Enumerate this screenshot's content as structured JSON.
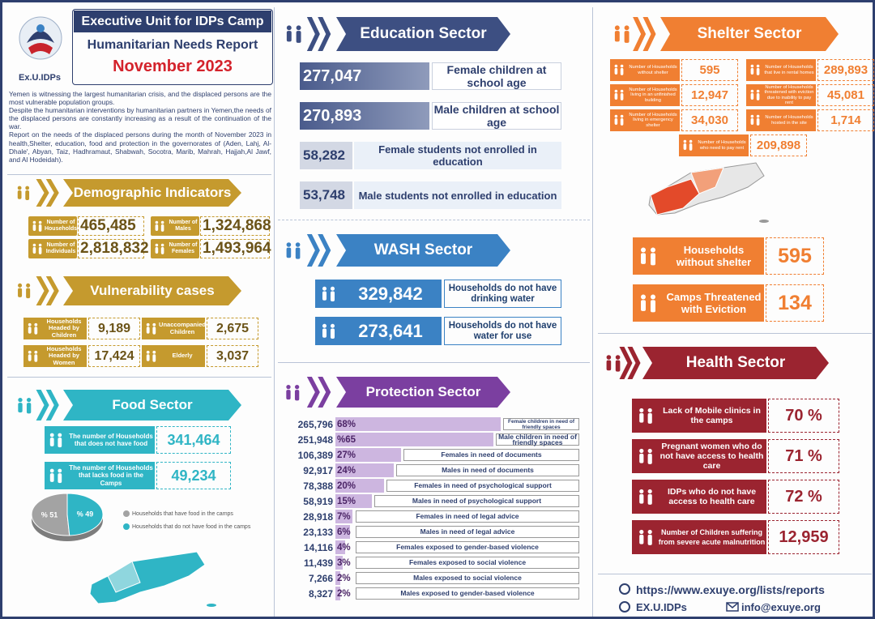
{
  "header": {
    "title": "Executive Unit for IDPs Camp",
    "subtitle": "Humanitarian Needs Report",
    "date": "November 2023",
    "logo": "Ex.U.IDPs"
  },
  "intro": [
    "Yemen is witnessing the largest humanitarian crisis, and the displaced persons are the most vulnerable population groups.",
    "Despite the humanitarian interventions by humanitarian partners in Yemen,the needs of the displaced persons are constantly increasing as a result of the continuation of the war.",
    "Report on the needs of the displaced persons during the month of November 2023 in health,Shelter, education, food and protection in the governorates of (Aden, Lahj, Al-Dhale', Abyan, Taiz, Hadhramaut, Shabwah, Socotra, Marib, Mahrah, Hajjah,Al Jawf, and Al Hodeidah)."
  ],
  "demographic": {
    "title": "Demographic Indicators",
    "items": [
      {
        "label": "Number of Households",
        "value": "465,485"
      },
      {
        "label": "Number of Males",
        "value": "1,324,868"
      },
      {
        "label": "Number of Individuals",
        "value": "2,818,832"
      },
      {
        "label": "Number of Females",
        "value": "1,493,964"
      }
    ]
  },
  "vulnerability": {
    "title": "Vulnerability cases",
    "items": [
      {
        "label": "Households Headed by Children",
        "value": "9,189"
      },
      {
        "label": "Unaccompanied Children",
        "value": "2,675"
      },
      {
        "label": "Households Headed by Women",
        "value": "17,424"
      },
      {
        "label": "Elderly",
        "value": "3,037"
      }
    ]
  },
  "food": {
    "title": "Food Sector",
    "items": [
      {
        "label": "The number of Households that does not have food",
        "value": "341,464"
      },
      {
        "label": "The number of Households that lacks food in the Camps",
        "value": "49,234"
      }
    ],
    "pie": [
      {
        "label": "Households that have food in the camps",
        "value": 51,
        "value_label": "% 51",
        "color": "#a3a3a3"
      },
      {
        "label": "Households that do not have food in the camps",
        "value": 49,
        "value_label": "% 49",
        "color": "#2fb5c5"
      }
    ]
  },
  "education": {
    "title": "Education Sector",
    "items": [
      {
        "value": "277,047",
        "label": "Female children at school age"
      },
      {
        "value": "270,893",
        "label": "Male children at school age"
      },
      {
        "value": "58,282",
        "label": "Female students not enrolled in education"
      },
      {
        "value": "53,748",
        "label": "Male students not enrolled in education"
      }
    ]
  },
  "wash": {
    "title": "WASH Sector",
    "items": [
      {
        "value": "329,842",
        "label": "Households do not have drinking water"
      },
      {
        "value": "273,641",
        "label": "Households do not have water for use"
      }
    ]
  },
  "protection": {
    "title": "Protection Sector",
    "items": [
      {
        "value": "265,796",
        "percent": 68,
        "percent_label": "68%",
        "label": "Female children in need of friendly spaces"
      },
      {
        "value": "251,948",
        "percent": 65,
        "percent_label": "%65",
        "label": "Male children in need of friendly spaces"
      },
      {
        "value": "106,389",
        "percent": 27,
        "percent_label": "27%",
        "label": "Females in need of documents"
      },
      {
        "value": "92,917",
        "percent": 24,
        "percent_label": "24%",
        "label": "Males in need of documents"
      },
      {
        "value": "78,388",
        "percent": 20,
        "percent_label": "20%",
        "label": "Females in need of psychological support"
      },
      {
        "value": "58,919",
        "percent": 15,
        "percent_label": "15%",
        "label": "Males in need of psychological support"
      },
      {
        "value": "28,918",
        "percent": 7,
        "percent_label": "7%",
        "label": "Females in need of legal advice"
      },
      {
        "value": "23,133",
        "percent": 6,
        "percent_label": "6%",
        "label": "Males in need of legal advice"
      },
      {
        "value": "14,116",
        "percent": 4,
        "percent_label": "4%",
        "label": "Females exposed to gender-based violence"
      },
      {
        "value": "11,439",
        "percent": 3,
        "percent_label": "3%",
        "label": "Females exposed to social violence"
      },
      {
        "value": "7,266",
        "percent": 2,
        "percent_label": "2%",
        "label": "Males exposed to social violence"
      },
      {
        "value": "8,327",
        "percent": 2,
        "percent_label": "2%",
        "label": "Males exposed to gender-based violence"
      }
    ]
  },
  "shelter": {
    "title": "Shelter Sector",
    "items": [
      {
        "label": "Number of Households without shelter",
        "value": "595"
      },
      {
        "label": "Number of Households that live in rental homes",
        "value": "289,893"
      },
      {
        "label": "Number of Households living in an unfinished building",
        "value": "12,947"
      },
      {
        "label": "Number of Households threatened with eviction due to inability to pay rent",
        "value": "45,081"
      },
      {
        "label": "Number of Households living in emergency shelter",
        "value": "34,030"
      },
      {
        "label": "Number of Households hosted in the site",
        "value": "1,714"
      },
      {
        "label": "Number of Households who need to pay rent",
        "value": "209,898"
      }
    ],
    "highlights": [
      {
        "label": "Households without shelter",
        "value": "595"
      },
      {
        "label": "Camps Threatened with Eviction",
        "value": "134"
      }
    ]
  },
  "health": {
    "title": "Health Sector",
    "items": [
      {
        "label": "Lack of Mobile clinics in the camps",
        "value": "70 %"
      },
      {
        "label": "Pregnant women who do not have access to health care",
        "value": "71 %"
      },
      {
        "label": "IDPs who do not have access to health care",
        "value": "72 %"
      },
      {
        "label": "Number of Children suffering from severe acute malnutrition",
        "value": "12,959"
      }
    ]
  },
  "footer": {
    "website": "https://www.exuye.org/lists/reports",
    "handle": "EX.U.IDPs",
    "email": "info@exuye.org"
  }
}
